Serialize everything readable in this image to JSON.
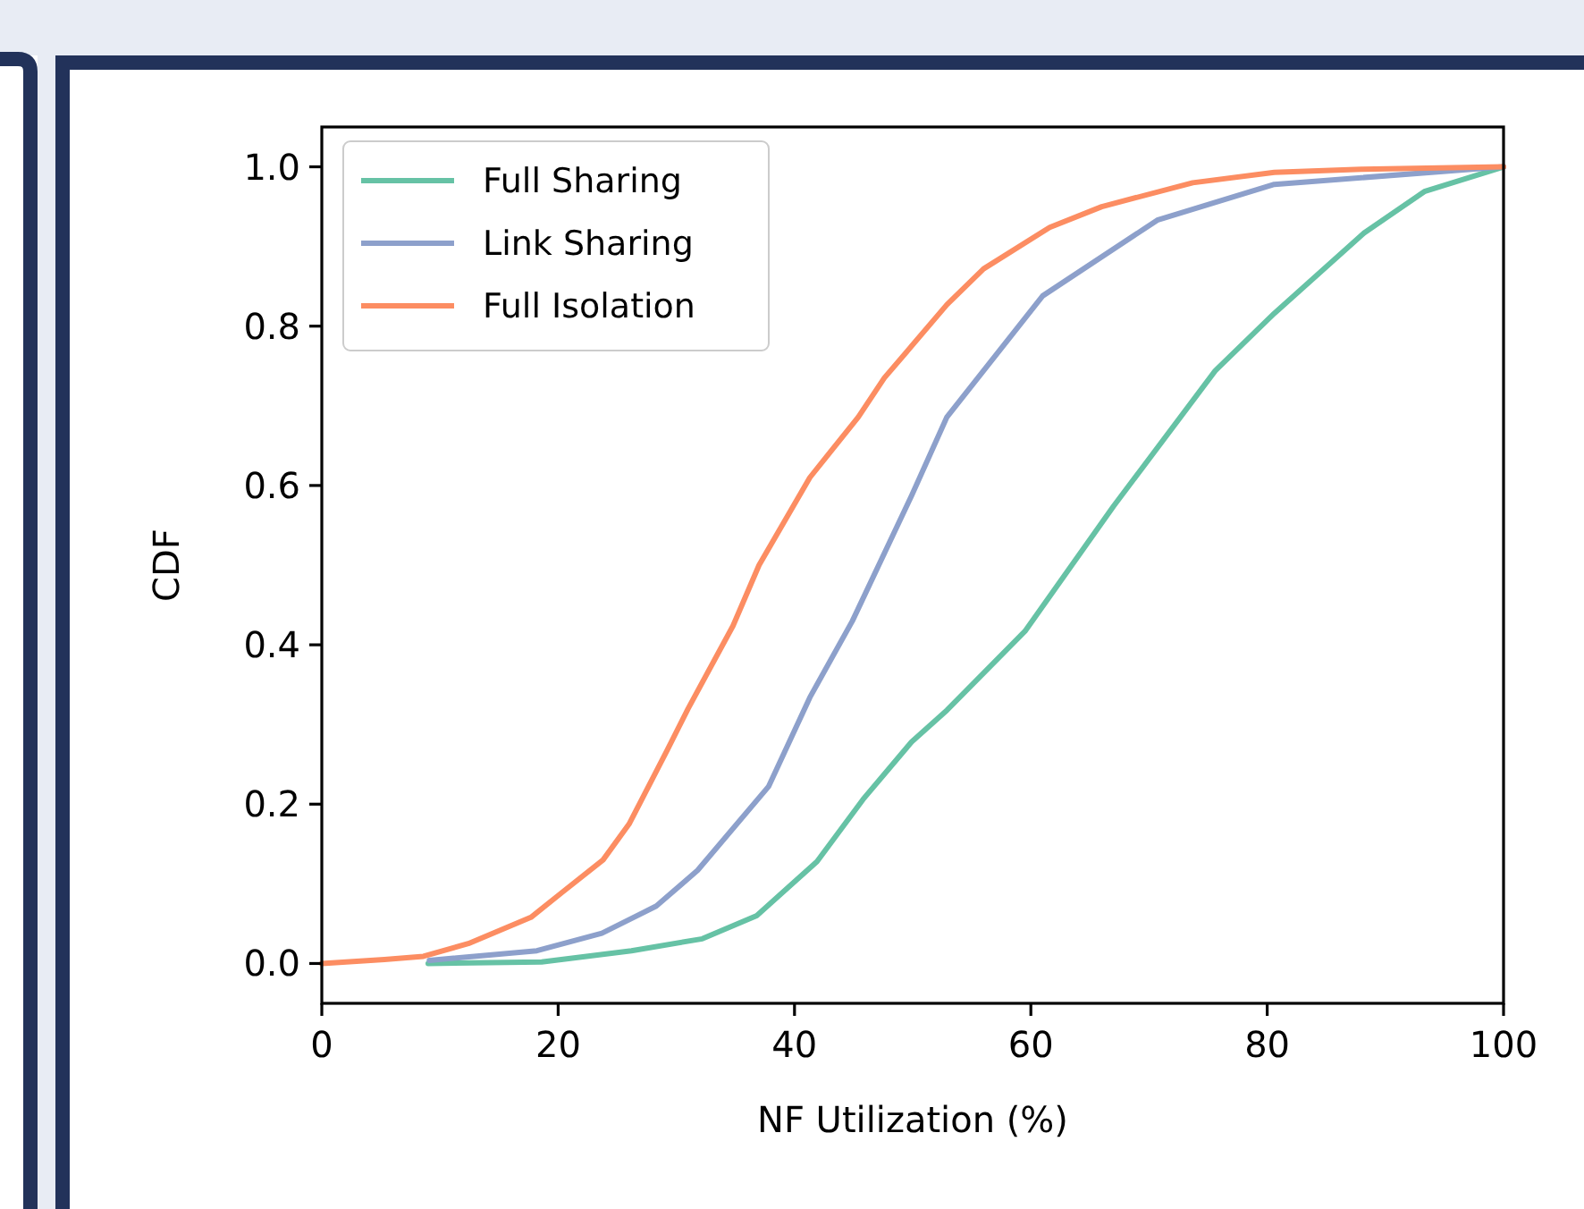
{
  "chart_data": {
    "type": "line",
    "xlabel": "NF Utilization (%)",
    "ylabel": "CDF",
    "xlim": [
      0,
      100
    ],
    "ylim": [
      -0.05,
      1.05
    ],
    "xticks": [
      0,
      20,
      40,
      60,
      80,
      100
    ],
    "yticks": [
      {
        "value": 0,
        "label": "0.0"
      },
      {
        "value": 0.2,
        "label": "0.2"
      },
      {
        "value": 0.4,
        "label": "0.4"
      },
      {
        "value": 0.6,
        "label": "0.6"
      },
      {
        "value": 0.8,
        "label": "0.8"
      },
      {
        "value": 1,
        "label": "1.0"
      }
    ],
    "legend": "top left",
    "grid": false,
    "marker": "none",
    "line_style": "solid",
    "series": [
      {
        "name": "Full Sharing",
        "color": "#66c2a5",
        "x": [
          9,
          18.6,
          26.2,
          32.2,
          36.8,
          41.9,
          45.8,
          49.9,
          52.9,
          59.5,
          67,
          75.6,
          80.6,
          88.2,
          93.3,
          100
        ],
        "values": [
          0,
          0.002,
          0.016,
          0.031,
          0.06,
          0.128,
          0.206,
          0.278,
          0.318,
          0.417,
          0.574,
          0.744,
          0.816,
          0.917,
          0.969,
          1
        ]
      },
      {
        "name": "Link Sharing",
        "color": "#8da0cb",
        "x": [
          9.1,
          18.2,
          23.7,
          28.3,
          31.8,
          37.8,
          41.3,
          44.9,
          49.9,
          52.9,
          61,
          70.7,
          80.6,
          100
        ],
        "values": [
          0.004,
          0.016,
          0.038,
          0.072,
          0.117,
          0.222,
          0.334,
          0.43,
          0.587,
          0.686,
          0.838,
          0.933,
          0.978,
          1
        ]
      },
      {
        "name": "Full Isolation",
        "color": "#fc8d62",
        "x": [
          0,
          5.3,
          8.6,
          12.4,
          17.7,
          20.4,
          23.8,
          26,
          29.2,
          31,
          34.8,
          37,
          41.3,
          45.4,
          47.6,
          52.9,
          56,
          61.6,
          66,
          73.7,
          80.6,
          88,
          100
        ],
        "values": [
          0,
          0.005,
          0.009,
          0.025,
          0.058,
          0.09,
          0.13,
          0.175,
          0.267,
          0.32,
          0.424,
          0.5,
          0.61,
          0.686,
          0.735,
          0.827,
          0.872,
          0.924,
          0.95,
          0.98,
          0.993,
          0.997,
          1
        ]
      }
    ]
  }
}
